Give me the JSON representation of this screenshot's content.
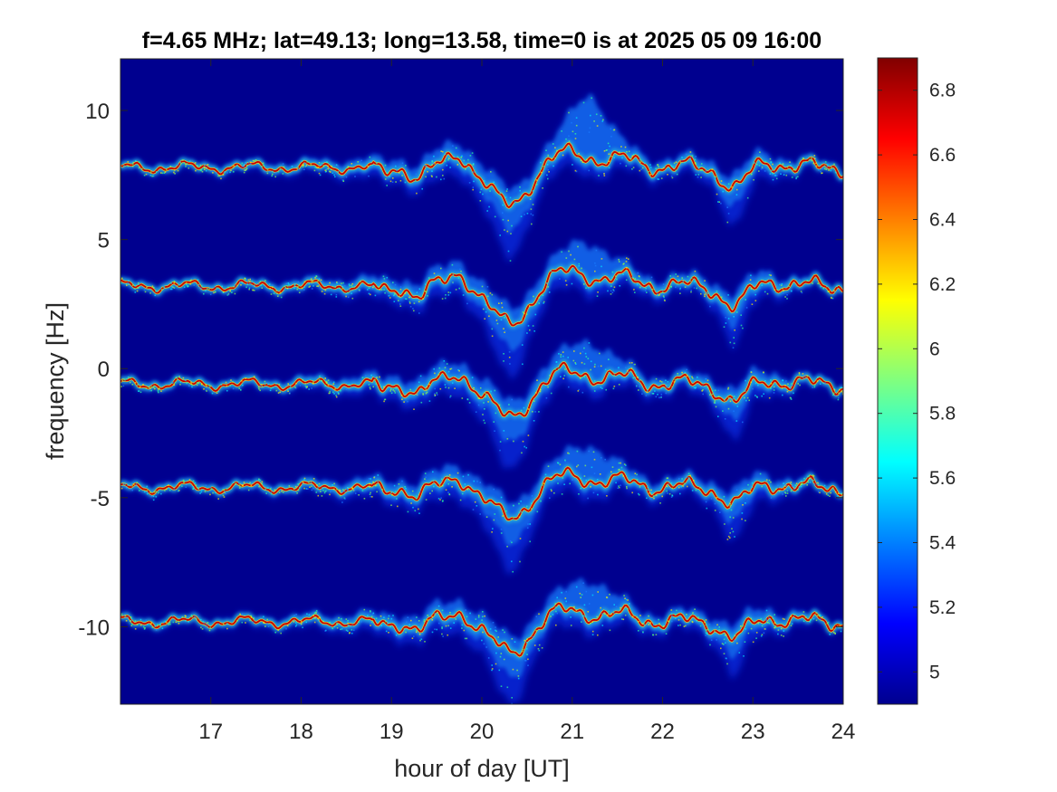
{
  "chart_data": {
    "type": "heatmap",
    "title": "f=4.65 MHz;  lat=49.13; long=13.58, time=0 is at 2025 05 09 16:00",
    "xlabel": "hour of day [UT]",
    "ylabel": "frequency [Hz]",
    "xlim": [
      16,
      24
    ],
    "ylim": [
      -13,
      12
    ],
    "xticks": [
      17,
      18,
      19,
      20,
      21,
      22,
      23,
      24
    ],
    "xtick_labels": [
      "17",
      "18",
      "19",
      "20",
      "21",
      "22",
      "23",
      "24"
    ],
    "yticks": [
      10,
      5,
      0,
      -5,
      -10
    ],
    "ytick_labels": [
      "10",
      "5",
      "0",
      "-5",
      "-10"
    ],
    "colormap": "jet",
    "background_color": "#00008f",
    "colorbar": {
      "clim": [
        4.9,
        6.9
      ],
      "ticks": [
        6.8,
        6.6,
        6.4,
        6.2,
        6,
        5.8,
        5.6,
        5.4,
        5.2,
        5
      ],
      "tick_labels": [
        "6.8",
        "6.6",
        "6.4",
        "6.2",
        "6",
        "5.8",
        "5.6",
        "5.4",
        "5.2",
        "5"
      ]
    },
    "traces": [
      {
        "baseline": 7.8,
        "dip_at_20_3": -1.5,
        "lower_spread_at_20_3": 3.0
      },
      {
        "baseline": 3.2,
        "dip_at_20_3": -1.5,
        "lower_spread_at_20_3": 3.0
      },
      {
        "baseline": -0.6,
        "dip_at_20_3": -1.3,
        "lower_spread_at_20_3": 3.0
      },
      {
        "baseline": -4.6,
        "dip_at_20_3": -1.2,
        "lower_spread_at_20_3": 3.0
      },
      {
        "baseline": -9.8,
        "dip_at_20_3": -1.2,
        "lower_spread_at_20_3": 2.8
      }
    ],
    "grid": false,
    "legend": "none"
  }
}
